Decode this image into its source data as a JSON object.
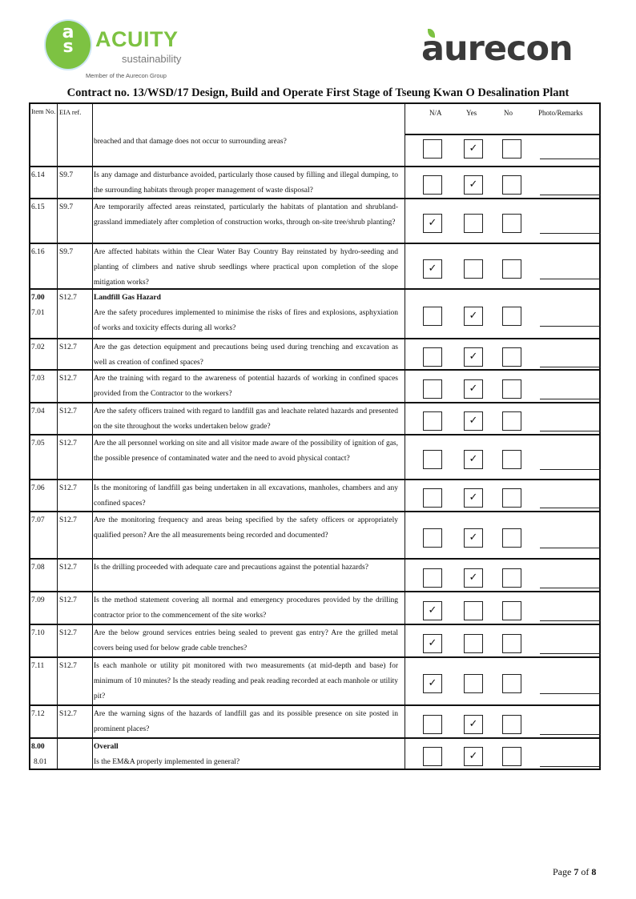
{
  "header": {
    "acuity_logo": {
      "mark": "acs",
      "name": "ACUITY",
      "sub": "sustainability",
      "member": "Member of the Aurecon Group"
    },
    "aurecon_logo": "aurecon",
    "title": "Contract no.  13/WSD/17 Design, Build and Operate First Stage of Tseung Kwan O Desalination Plant"
  },
  "colors": {
    "acuity_green": "#7dc242",
    "aurecon_grey": "#3a3a3a"
  },
  "table": {
    "columns": {
      "item": "Item No.",
      "eia": "EIA ref.",
      "na": "N/A",
      "yes": "Yes",
      "no": "No",
      "remarks": "Photo/Remarks"
    },
    "rows": [
      {
        "item": "",
        "eia": "",
        "text": "breached and that damage does not occur to surrounding areas?",
        "answer": "yes"
      },
      {
        "item": "6.14",
        "eia": "S9.7",
        "text": "Is any damage and disturbance avoided, particularly those caused by filling and illegal dumping, to the surrounding habitats through proper management of waste disposal?",
        "answer": "yes"
      },
      {
        "item": "6.15",
        "eia": "S9.7",
        "text": "Are temporarily affected areas reinstated, particularly the habitats of plantation and shrubland-grassland immediately after completion of construction works, through on-site tree/shrub planting?",
        "answer": "na"
      },
      {
        "item": "6.16",
        "eia": "S9.7",
        "text": "Are affected habitats within the Clear Water Bay Country Bay reinstated by hydro-seeding and planting of climbers and native shrub seedlings where practical upon completion of the slope mitigation works?",
        "answer": "na"
      },
      {
        "section_no": "7.00",
        "section": "Landfill Gas Hazard",
        "item": "7.01",
        "eia": "S12.7",
        "text": "Are the safety procedures implemented to minimise the risks of fires and explosions, asphyxiation of works and toxicity effects during all works?",
        "answer": "yes"
      },
      {
        "item": "7.02",
        "eia": "S12.7",
        "text": "Are the gas detection equipment and precautions being used during trenching and excavation as well as creation of confined spaces?",
        "answer": "yes"
      },
      {
        "item": "7.03",
        "eia": "S12.7",
        "text": "Are the training with regard to the awareness of potential hazards of working in confined spaces provided from the Contractor to the workers?",
        "answer": "yes"
      },
      {
        "item": "7.04",
        "eia": "S12.7",
        "text": "Are the safety officers trained with regard to landfill gas and leachate related hazards and presented on the site throughout the works undertaken below grade?",
        "answer": "yes"
      },
      {
        "item": "7.05",
        "eia": "S12.7",
        "text": "Are the all personnel working on site and all visitor made aware of the possibility of ignition of gas, the possible presence of contaminated water and the need to avoid physical contact?",
        "answer": "yes"
      },
      {
        "item": "7.06",
        "eia": "S12.7",
        "text": "Is the monitoring of landfill gas being undertaken in all excavations, manholes, chambers and any confined spaces?",
        "answer": "yes"
      },
      {
        "item": "7.07",
        "eia": "S12.7",
        "text": "Are the monitoring frequency and areas being specified by the safety officers or appropriately qualified person? Are the all measurements being recorded and documented?",
        "answer": "yes"
      },
      {
        "item": "7.08",
        "eia": "S12.7",
        "text": "Is the drilling proceeded with adequate care and precautions against the potential hazards?",
        "answer": "yes"
      },
      {
        "item": "7.09",
        "eia": "S12.7",
        "text": "Is the method statement covering all normal and emergency procedures provided by the drilling contractor prior to the commencement of the site works?",
        "answer": "na"
      },
      {
        "item": "7.10",
        "eia": "S12.7",
        "text": "Are the below ground services entries being sealed to prevent gas entry? Are the grilled metal covers being used for below grade cable trenches?",
        "answer": "na"
      },
      {
        "item": "7.11",
        "eia": "S12.7",
        "text": "Is each manhole or utility pit monitored with two measurements (at mid-depth and base) for minimum of 10 minutes? Is the steady reading and peak reading recorded at each manhole or utility pit?",
        "answer": "na"
      },
      {
        "item": "7.12",
        "eia": "S12.7",
        "text": "Are the warning signs of the hazards of landfill gas and its possible presence on site posted in prominent places?",
        "answer": "yes"
      },
      {
        "section_no": "8.00",
        "section": "Overall",
        "item": "8.01",
        "eia": "",
        "text": "Is the EM&A properly implemented in general?",
        "answer": "yes"
      }
    ],
    "check_mark": "✓"
  },
  "footer": {
    "page_prefix": "Page ",
    "page": "7",
    "of": " of ",
    "total": "8"
  }
}
